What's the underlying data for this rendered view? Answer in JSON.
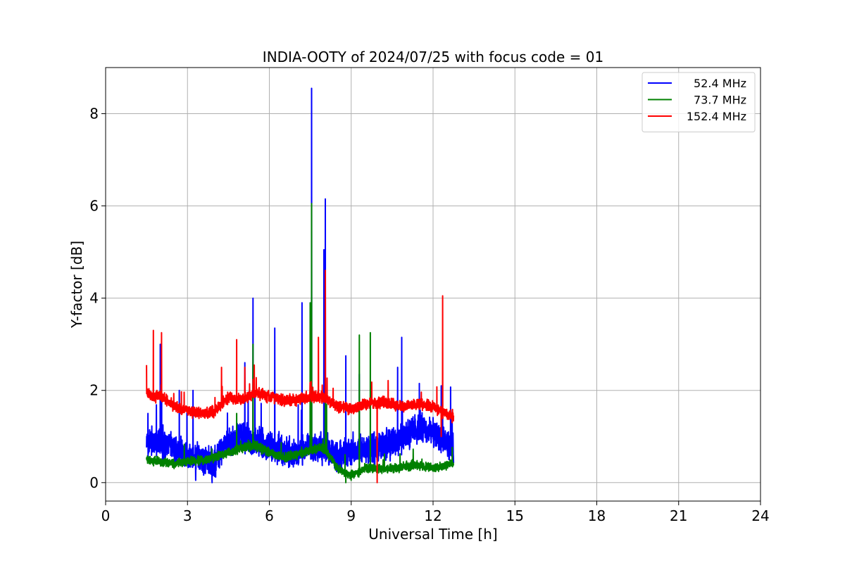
{
  "chart_data": {
    "type": "line",
    "title": "INDIA-OOTY of 2024/07/25 with focus code = 01",
    "xlabel": "Universal Time [h]",
    "ylabel": "Y-factor [dB]",
    "xlim": [
      0,
      24
    ],
    "ylim": [
      -0.4,
      9.0
    ],
    "xticks": [
      0,
      3,
      6,
      9,
      12,
      15,
      18,
      21,
      24
    ],
    "xtick_labels": [
      "0",
      "3",
      "6",
      "9",
      "12",
      "15",
      "18",
      "21",
      "24"
    ],
    "yticks": [
      0,
      2,
      4,
      6,
      8
    ],
    "ytick_labels": [
      "0",
      "2",
      "4",
      "6",
      "8"
    ],
    "grid": true,
    "legend_position": "top-right",
    "series": [
      {
        "name": "52.4 MHz",
        "color": "#0000ff",
        "base": [
          [
            1.5,
            0.9
          ],
          [
            2.0,
            0.9
          ],
          [
            2.5,
            0.7
          ],
          [
            3.0,
            0.6
          ],
          [
            3.5,
            0.55
          ],
          [
            3.9,
            0.35
          ],
          [
            4.3,
            0.8
          ],
          [
            5.0,
            1.0
          ],
          [
            6.0,
            0.8
          ],
          [
            7.0,
            0.6
          ],
          [
            7.5,
            0.8
          ],
          [
            8.0,
            0.7
          ],
          [
            8.5,
            0.55
          ],
          [
            9.0,
            0.7
          ],
          [
            10.0,
            0.75
          ],
          [
            11.0,
            1.0
          ],
          [
            11.5,
            1.2
          ],
          [
            12.0,
            1.1
          ],
          [
            12.4,
            0.9
          ],
          [
            12.75,
            0.75
          ]
        ],
        "noise": 0.4,
        "spikes": [
          [
            1.55,
            1.5
          ],
          [
            2.0,
            3.0
          ],
          [
            2.7,
            2.0
          ],
          [
            3.2,
            2.0
          ],
          [
            5.1,
            2.6
          ],
          [
            5.4,
            4.0
          ],
          [
            6.2,
            3.35
          ],
          [
            7.2,
            3.9
          ],
          [
            7.55,
            8.55
          ],
          [
            8.05,
            6.15
          ],
          [
            8.0,
            5.05
          ],
          [
            8.8,
            2.75
          ],
          [
            9.3,
            2.35
          ],
          [
            10.7,
            2.5
          ],
          [
            10.85,
            3.15
          ],
          [
            11.5,
            2.15
          ],
          [
            12.3,
            2.1
          ],
          [
            12.35,
            1.6
          ],
          [
            3.9,
            0.0
          ],
          [
            3.3,
            0.05
          ]
        ]
      },
      {
        "name": "73.7 MHz",
        "color": "#008000",
        "base": [
          [
            1.5,
            0.5
          ],
          [
            2.0,
            0.45
          ],
          [
            2.5,
            0.42
          ],
          [
            3.0,
            0.45
          ],
          [
            3.5,
            0.48
          ],
          [
            4.0,
            0.55
          ],
          [
            4.5,
            0.65
          ],
          [
            5.0,
            0.75
          ],
          [
            5.5,
            0.8
          ],
          [
            6.0,
            0.65
          ],
          [
            6.5,
            0.55
          ],
          [
            7.0,
            0.6
          ],
          [
            7.5,
            0.7
          ],
          [
            8.0,
            0.75
          ],
          [
            8.5,
            0.3
          ],
          [
            9.0,
            0.15
          ],
          [
            9.5,
            0.3
          ],
          [
            10.0,
            0.3
          ],
          [
            10.5,
            0.3
          ],
          [
            11.0,
            0.35
          ],
          [
            11.5,
            0.38
          ],
          [
            12.0,
            0.32
          ],
          [
            12.75,
            0.42
          ]
        ],
        "noise": 0.12,
        "spikes": [
          [
            5.4,
            3.0
          ],
          [
            7.55,
            6.05
          ],
          [
            7.5,
            3.9
          ],
          [
            8.05,
            2.0
          ],
          [
            8.1,
            1.7
          ],
          [
            9.3,
            3.2
          ],
          [
            9.7,
            3.25
          ],
          [
            4.8,
            1.5
          ],
          [
            8.8,
            0.0
          ],
          [
            9.0,
            0.05
          ]
        ]
      },
      {
        "name": "152.4 MHz",
        "color": "#ff0000",
        "base": [
          [
            1.5,
            2.0
          ],
          [
            1.7,
            1.85
          ],
          [
            2.0,
            1.9
          ],
          [
            2.5,
            1.65
          ],
          [
            3.0,
            1.55
          ],
          [
            3.5,
            1.5
          ],
          [
            4.0,
            1.55
          ],
          [
            4.5,
            1.85
          ],
          [
            5.0,
            1.8
          ],
          [
            5.5,
            1.95
          ],
          [
            6.0,
            1.85
          ],
          [
            6.5,
            1.8
          ],
          [
            7.0,
            1.8
          ],
          [
            7.5,
            1.85
          ],
          [
            8.0,
            1.85
          ],
          [
            8.5,
            1.65
          ],
          [
            9.0,
            1.6
          ],
          [
            9.5,
            1.7
          ],
          [
            10.0,
            1.75
          ],
          [
            10.5,
            1.7
          ],
          [
            11.0,
            1.65
          ],
          [
            11.5,
            1.7
          ],
          [
            12.0,
            1.65
          ],
          [
            12.4,
            1.5
          ],
          [
            12.75,
            1.45
          ]
        ],
        "noise": 0.15,
        "spikes": [
          [
            1.75,
            3.3
          ],
          [
            2.05,
            3.25
          ],
          [
            4.25,
            2.5
          ],
          [
            4.8,
            3.1
          ],
          [
            5.1,
            2.5
          ],
          [
            5.45,
            2.55
          ],
          [
            8.05,
            4.6
          ],
          [
            7.8,
            3.15
          ],
          [
            9.95,
            0.0
          ],
          [
            12.35,
            4.05
          ],
          [
            12.3,
            1.0
          ],
          [
            12.7,
            1.3
          ],
          [
            1.5,
            2.55
          ]
        ]
      }
    ]
  }
}
